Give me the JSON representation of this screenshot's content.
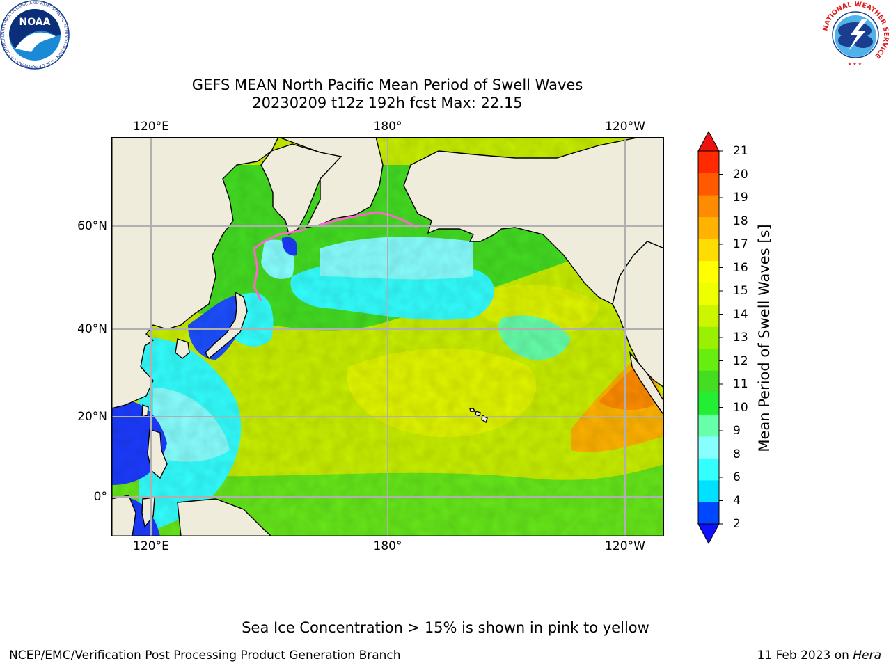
{
  "title": {
    "line1": "GEFS MEAN North Pacific Mean Period of Swell Waves",
    "line2": "20230209 t12z 192h fcst   Max: 22.15"
  },
  "map": {
    "lon_labels": [
      "120°E",
      "180°",
      "120°W"
    ],
    "lat_labels": [
      "60°N",
      "40°N",
      "20°N",
      "0°"
    ],
    "colors": {
      "land": "#efecdc",
      "ice_pink": "#ff66cc",
      "grid": "#b0b0b0"
    }
  },
  "colorbar": {
    "label": "Mean Period of Swell Waves [s]",
    "ticks": [
      "2",
      "4",
      "6",
      "8",
      "9",
      "10",
      "11",
      "12",
      "13",
      "14",
      "15",
      "16",
      "17",
      "18",
      "19",
      "20",
      "21"
    ],
    "colors": [
      "#0048ff",
      "#00e0ff",
      "#33ffff",
      "#88ffff",
      "#66ffaa",
      "#22ee33",
      "#44dd22",
      "#66ee11",
      "#99f000",
      "#ccf500",
      "#eeff00",
      "#ffff00",
      "#ffdd00",
      "#ffb300",
      "#ff8c00",
      "#ff5a00",
      "#ff2a00"
    ],
    "under_color": "#1010ff",
    "over_color": "#ee1111"
  },
  "note": "Sea Ice Concentration > 15% is shown in pink to yellow",
  "footer": {
    "left": "NCEP/EMC/Verification Post Processing Product Generation Branch",
    "right_date": "11 Feb 2023 on ",
    "right_host": "Hera"
  },
  "logos": {
    "noaa": {
      "text": "NOAA",
      "ring_text": "NATIONAL OCEANIC AND ATMOSPHERIC ADMINISTRATION · U.S. DEPARTMENT OF COMMERCE"
    },
    "nws": {
      "ring_text": "NATIONAL WEATHER SERVICE"
    }
  }
}
